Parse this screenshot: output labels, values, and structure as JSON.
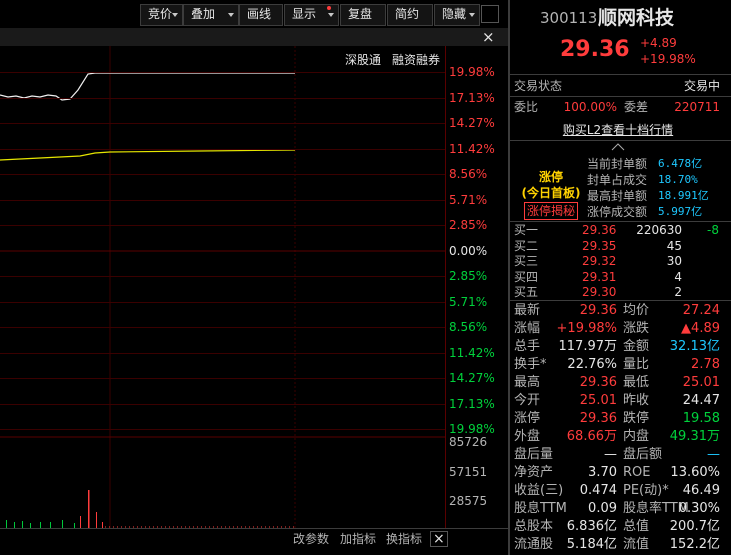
{
  "toolbar": {
    "buttons": [
      "竞价",
      "叠加",
      "画线",
      "显示",
      "复盘",
      "简约",
      "隐藏"
    ]
  },
  "chart": {
    "tags": [
      "深股通",
      "融资融券"
    ],
    "price_axis": [
      "19.98%",
      "17.13%",
      "14.27%",
      "11.42%",
      "8.56%",
      "5.71%",
      "2.85%",
      "0.00%",
      "2.85%",
      "5.71%",
      "8.56%",
      "11.42%",
      "14.27%",
      "17.13%",
      "19.98%"
    ],
    "volume_axis": [
      "85726",
      "57151",
      "28575"
    ],
    "footer": [
      "改参数",
      "加指标",
      "换指标"
    ]
  },
  "quote": {
    "code": "300113",
    "name": "顺网科技",
    "price": "29.36",
    "change": "+4.89",
    "percent": "+19.98%"
  },
  "status": {
    "label": "交易状态",
    "value": "交易中"
  },
  "order_ratio": {
    "ratio_label": "委比",
    "ratio": "100.00%",
    "diff_label": "委差",
    "diff": "220711"
  },
  "l2_link": "购买L2查看十档行情",
  "limit_up": {
    "title": "涨停",
    "subtitle": "(今日首板)",
    "button": "涨停揭秘",
    "stats": [
      [
        "当前封单额",
        "6.478亿"
      ],
      [
        "封单占成交",
        "18.70%"
      ],
      [
        "最高封单额",
        "18.991亿"
      ],
      [
        "涨停成交额",
        "5.997亿"
      ]
    ]
  },
  "order_book": [
    [
      "买一",
      "29.36",
      "220630",
      "-8"
    ],
    [
      "买二",
      "29.35",
      "45"
    ],
    [
      "买三",
      "29.32",
      "30"
    ],
    [
      "买四",
      "29.31",
      "4"
    ],
    [
      "买五",
      "29.30",
      "2"
    ]
  ],
  "stats": [
    [
      "最新",
      "29.36",
      "均价",
      "27.24"
    ],
    [
      "涨幅",
      "+19.98%",
      "涨跌",
      "▲4.89"
    ],
    [
      "总手",
      "117.97万",
      "金额",
      "32.13亿"
    ],
    [
      "换手*",
      "22.76%",
      "量比",
      "2.78"
    ],
    [
      "最高",
      "29.36",
      "最低",
      "25.01"
    ],
    [
      "今开",
      "25.01",
      "昨收",
      "24.47"
    ],
    [
      "涨停",
      "29.36",
      "跌停",
      "19.58"
    ],
    [
      "外盘",
      "68.66万",
      "内盘",
      "49.31万"
    ],
    [
      "盘后量",
      "—",
      "盘后额",
      "—"
    ],
    [
      "净资产",
      "3.70",
      "ROE",
      "13.60%"
    ],
    [
      "收益(三)",
      "0.474",
      "PE(动)*",
      "46.49"
    ],
    [
      "股息TTM",
      "0.09",
      "股息率TTM",
      "0.30%"
    ],
    [
      "总股本",
      "6.836亿",
      "总值",
      "200.7亿"
    ],
    [
      "流通股",
      "5.184亿",
      "流值",
      "152.2亿"
    ]
  ]
}
